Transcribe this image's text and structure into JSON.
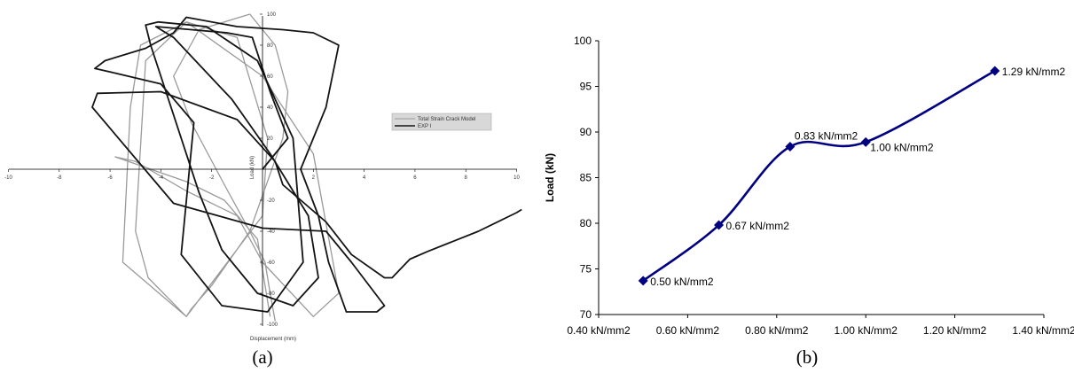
{
  "captions": {
    "a": "(a)",
    "b": "(b)"
  },
  "colors": {
    "exp": "#141414",
    "model": "#9a9a9a",
    "line_b": "#000080",
    "axis": "#000000",
    "legend_bg": "#d8d8d8"
  },
  "chart_data": [
    {
      "type": "line",
      "xlabel": "Displacement (mm)",
      "ylabel": "Load (kN)",
      "xlim": [
        -10,
        10
      ],
      "ylim": [
        -100,
        100
      ],
      "x_ticks": [
        "-10",
        "-8",
        "-6",
        "-4",
        "-2",
        "2",
        "4",
        "6",
        "8",
        "10"
      ],
      "y_ticks": [
        "-100",
        "-80",
        "-60",
        "-40",
        "-20",
        "20",
        "40",
        "60",
        "80",
        "100"
      ],
      "legend_position": "right",
      "series": [
        {
          "name": "Total Strain Crack Model",
          "color": "#9a9a9a",
          "x": [
            0.5,
            0.3,
            0.1,
            -0.5,
            -1.5,
            -2.8,
            -3.5,
            -2.5,
            -0.5,
            0.5,
            1.0,
            0.8,
            -0.5,
            -2.0,
            -2.8,
            -3.0,
            -4.5,
            -5.0,
            -4.6,
            -3.0,
            -1.0,
            0.2,
            0.0,
            -3.0,
            -5.5,
            -5.2,
            -4.8,
            -3.0,
            0.0,
            2.0,
            3.0,
            2.0,
            0.0,
            -1.0,
            -3.0,
            -5.0,
            -5.8,
            -3.0,
            -1.5,
            -0.2,
            0.3
          ],
          "y": [
            -98,
            -80,
            -60,
            -40,
            -10,
            30,
            60,
            90,
            100,
            80,
            50,
            20,
            -40,
            -75,
            -90,
            -95,
            -70,
            -40,
            70,
            95,
            85,
            20,
            -30,
            -95,
            -60,
            40,
            80,
            95,
            60,
            10,
            -80,
            -95,
            -60,
            -30,
            -14,
            5,
            8,
            -8,
            -20,
            -45,
            -95
          ]
        },
        {
          "name": "EXP I",
          "color": "#141414",
          "x": [
            0,
            1,
            0.3,
            -0.4,
            -1.4,
            -2.8,
            -4.2,
            -3.5,
            -1.2,
            0.3,
            1.8,
            2.2,
            1.2,
            -0.2,
            -1.6,
            -2.5,
            -4.4,
            -4.6,
            -4.1,
            -2.2,
            -0.2,
            1.2,
            1.6,
            0.2,
            -1.6,
            -3.2,
            -2.7,
            -4.0,
            -5.8,
            -6.6,
            -6.2,
            -4.6,
            -3.5,
            -3.0,
            -1.0,
            0.8,
            2.0,
            3.0,
            2.5,
            1.5,
            2.2,
            2.6,
            3.3,
            4.5,
            4.8,
            3.5,
            2.5,
            0,
            -3.5,
            -6.7,
            -6.5,
            -4.0,
            -1.0,
            0.5,
            0.8,
            2.5,
            3.5,
            4.8,
            5.1,
            5.8,
            6.5,
            8.5,
            10,
            10.2
          ],
          "y": [
            0,
            20,
            50,
            85,
            88,
            90,
            92,
            85,
            45,
            10,
            -30,
            -70,
            -88,
            -80,
            -52,
            -15,
            80,
            93,
            95,
            92,
            70,
            20,
            -60,
            -92,
            -88,
            -55,
            30,
            55,
            62,
            65,
            70,
            78,
            88,
            98,
            92,
            90,
            88,
            80,
            40,
            0,
            -30,
            -60,
            -92,
            -92,
            -88,
            -60,
            -40,
            -38,
            -22,
            40,
            49,
            50,
            32,
            5,
            -10,
            -34,
            -55,
            -70,
            -70,
            -58,
            -53,
            -40,
            -28,
            -26
          ]
        }
      ]
    },
    {
      "type": "line",
      "title": "",
      "xlabel": "",
      "ylabel": "Load (kN)",
      "xlim": [
        0.4,
        1.4
      ],
      "ylim": [
        70,
        100
      ],
      "x_ticks": [
        "0.40 kN/mm2",
        "0.60 kN/mm2",
        "0.80 kN/mm2",
        "1.00 kN/mm2",
        "1.20 kN/mm2",
        "1.40 kN/mm2"
      ],
      "y_ticks": [
        "70",
        "75",
        "80",
        "85",
        "90",
        "95",
        "100"
      ],
      "grid": false,
      "series": [
        {
          "name": "",
          "x": [
            0.5,
            0.67,
            0.83,
            1.0,
            1.29
          ],
          "y": [
            73.7,
            79.8,
            88.4,
            88.9,
            96.7
          ],
          "labels": [
            "0.50 kN/mm2",
            "0.67 kN/mm2",
            "0.83 kN/mm2",
            "1.00 kN/mm2",
            "1.29 kN/mm2"
          ]
        }
      ]
    }
  ]
}
